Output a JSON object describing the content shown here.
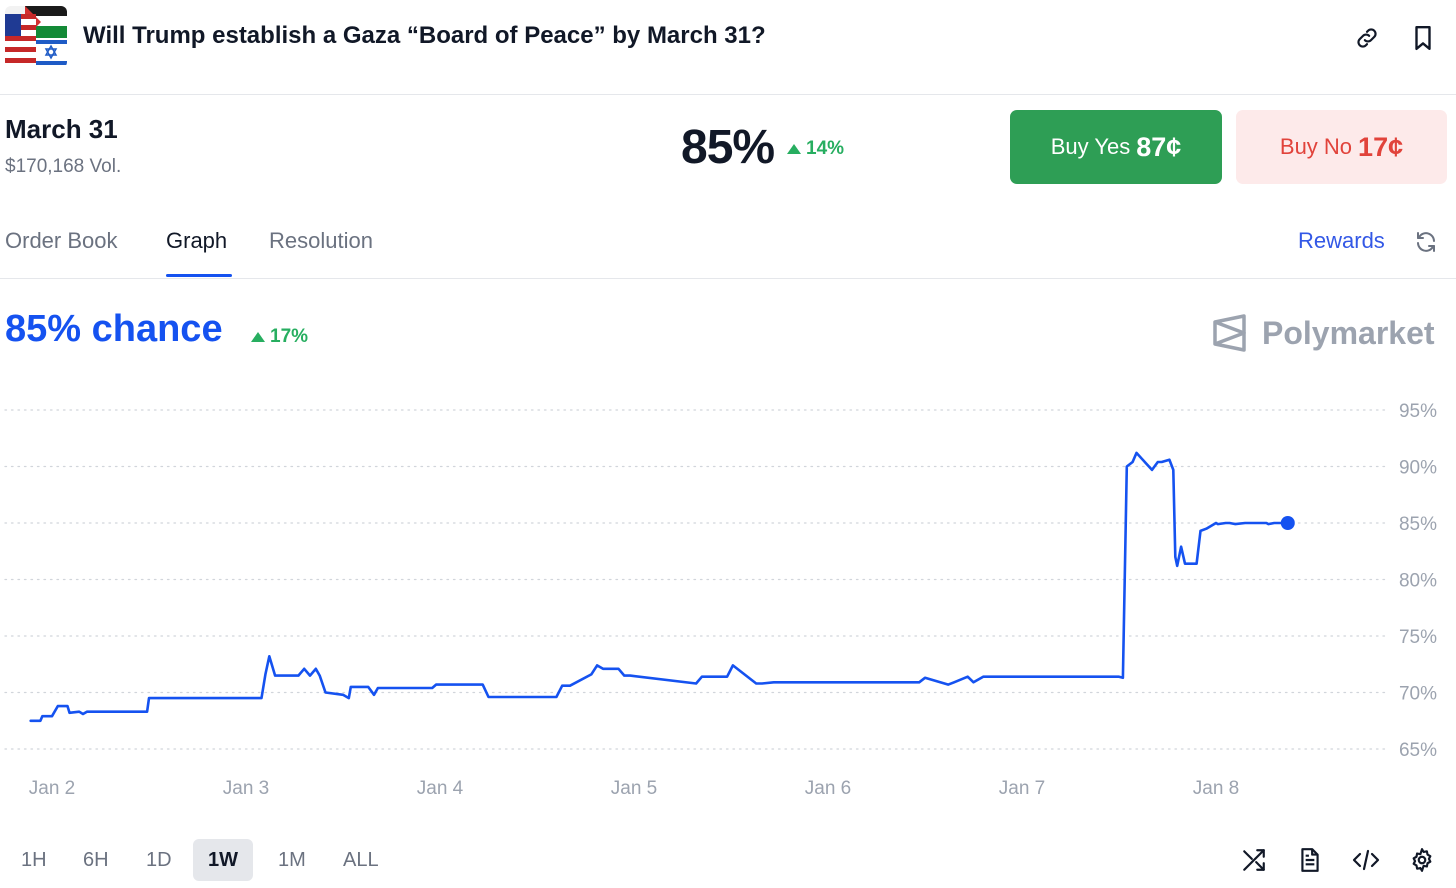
{
  "header": {
    "title": "Will Trump establish a Gaza “Board of Peace” by March 31?",
    "icons": [
      "link-icon",
      "bookmark-icon"
    ]
  },
  "market": {
    "name": "March 31",
    "volume": "$170,168 Vol.",
    "probability": "85%",
    "change": "14%"
  },
  "buttons": {
    "yes_label": "Buy Yes",
    "yes_price": "87¢",
    "no_label": "Buy No",
    "no_price": "17¢"
  },
  "tabs": [
    {
      "label": "Order Book",
      "active": false
    },
    {
      "label": "Graph",
      "active": true
    },
    {
      "label": "Resolution",
      "active": false
    }
  ],
  "rewards_label": "Rewards",
  "graph": {
    "chance": "85% chance",
    "change": "17%",
    "brand": "Polymarket"
  },
  "colors": {
    "accent": "#1552f0",
    "positive": "#27ae60",
    "yes": "#2e9e55",
    "no": "#e1433b",
    "no_bg": "#fdeaea"
  },
  "chart_data": {
    "type": "line",
    "y_ticks": [
      "95%",
      "90%",
      "85%",
      "80%",
      "75%",
      "70%",
      "65%"
    ],
    "x_ticks": [
      "Jan 2",
      "Jan 3",
      "Jan 4",
      "Jan 5",
      "Jan 6",
      "Jan 7",
      "Jan 8"
    ],
    "ylim": [
      65,
      95
    ],
    "xlim": [
      0,
      6.76
    ],
    "grid": true,
    "series": [
      {
        "color": "#1552f0",
        "x": [
          -0.11,
          -0.06,
          -0.05,
          0.0,
          0.03,
          0.08,
          0.09,
          0.14,
          0.16,
          0.18,
          0.49,
          0.5,
          1.08,
          1.1,
          1.12,
          1.15,
          1.2,
          1.27,
          1.3,
          1.33,
          1.36,
          1.38,
          1.41,
          1.5,
          1.53,
          1.54,
          1.63,
          1.66,
          1.68,
          1.96,
          1.98,
          2.22,
          2.25,
          2.6,
          2.63,
          2.67,
          2.78,
          2.81,
          2.84,
          2.92,
          2.95,
          2.98,
          3.32,
          3.35,
          3.48,
          3.51,
          3.63,
          3.66,
          3.72,
          3.75,
          3.79,
          4.47,
          4.5,
          4.62,
          4.65,
          4.72,
          4.75,
          4.8,
          5.5,
          5.52,
          5.54,
          5.57,
          5.59,
          5.67,
          5.7,
          5.72,
          5.76,
          5.78,
          5.79,
          5.8,
          5.82,
          5.84,
          5.87,
          5.9,
          5.92,
          5.95,
          6.0,
          6.01,
          6.05,
          6.07,
          6.1,
          6.15,
          6.26,
          6.27,
          6.3,
          6.37
        ]
      },
      {
        "name": "y",
        "values": [
          67.5,
          67.5,
          67.9,
          67.9,
          68.8,
          68.8,
          68.2,
          68.3,
          68.1,
          68.3,
          68.3,
          69.5,
          69.5,
          71.6,
          73.2,
          71.5,
          71.5,
          71.5,
          72.1,
          71.5,
          72.1,
          71.5,
          70.0,
          69.8,
          69.5,
          70.5,
          70.5,
          69.8,
          70.4,
          70.4,
          70.7,
          70.7,
          69.6,
          69.6,
          70.6,
          70.6,
          71.6,
          72.4,
          72.1,
          72.1,
          71.5,
          71.5,
          70.8,
          71.4,
          71.4,
          72.4,
          70.8,
          70.8,
          70.9,
          70.9,
          70.9,
          70.9,
          71.3,
          70.7,
          70.9,
          71.4,
          70.9,
          71.4,
          71.4,
          71.3,
          90.0,
          90.4,
          91.2,
          89.7,
          90.4,
          90.4,
          90.6,
          89.7,
          82.0,
          81.2,
          82.9,
          81.4,
          81.4,
          81.4,
          84.3,
          84.5,
          85.0,
          84.9,
          85.0,
          85.0,
          84.9,
          85.0,
          85.0,
          84.9,
          85.0,
          85.0
        ]
      }
    ]
  },
  "ranges": [
    {
      "label": "1H",
      "active": false
    },
    {
      "label": "6H",
      "active": false
    },
    {
      "label": "1D",
      "active": false
    },
    {
      "label": "1W",
      "active": true
    },
    {
      "label": "1M",
      "active": false
    },
    {
      "label": "ALL",
      "active": false
    }
  ],
  "tools": [
    "shuffle-icon",
    "document-icon",
    "code-icon",
    "settings-icon"
  ]
}
